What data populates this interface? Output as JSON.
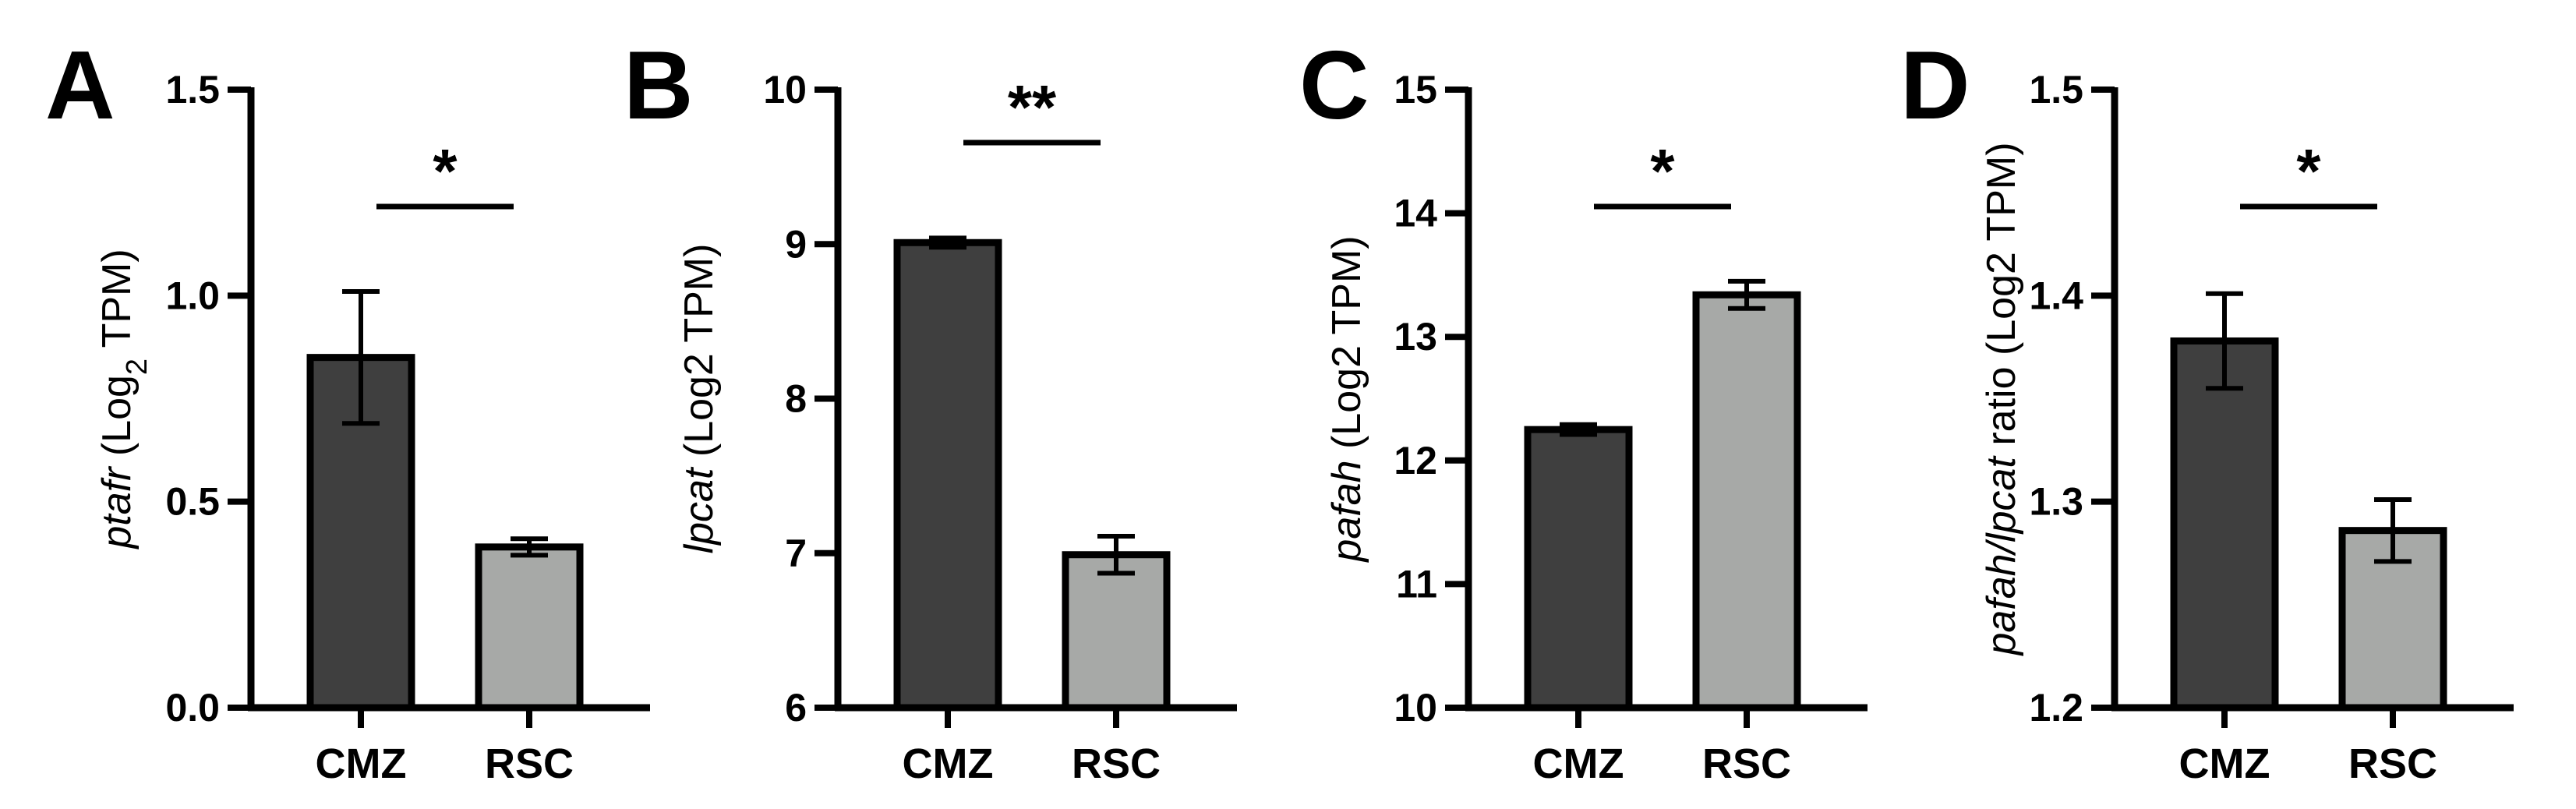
{
  "chart_data": [
    {
      "type": "bar",
      "panel_label": "A",
      "categories": [
        "CMZ",
        "RSC"
      ],
      "values": [
        0.85,
        0.39
      ],
      "errors": [
        0.16,
        0.02
      ],
      "ylabel_parts": [
        {
          "text": "ptafr",
          "italic": true
        },
        {
          "text": " (Log",
          "italic": false
        },
        {
          "text": "2",
          "italic": false,
          "sub": true
        },
        {
          "text": " TPM)",
          "italic": false
        }
      ],
      "ylim": [
        0.0,
        1.5
      ],
      "yticks": [
        "0.0",
        "0.5",
        "1.0",
        "1.5"
      ],
      "significance": "*",
      "colors": [
        "#3f3f3f",
        "#a7a9a7"
      ]
    },
    {
      "type": "bar",
      "panel_label": "B",
      "categories": [
        "CMZ",
        "RSC"
      ],
      "values": [
        9.01,
        6.99
      ],
      "errors": [
        0.03,
        0.12
      ],
      "ylabel_parts": [
        {
          "text": "lpcat",
          "italic": true
        },
        {
          "text": " (Log2 TPM)",
          "italic": false
        }
      ],
      "ylim": [
        6,
        10
      ],
      "yticks": [
        "6",
        "7",
        "8",
        "9",
        "10"
      ],
      "significance": "**",
      "colors": [
        "#3f3f3f",
        "#a7a9a7"
      ]
    },
    {
      "type": "bar",
      "panel_label": "C",
      "categories": [
        "CMZ",
        "RSC"
      ],
      "values": [
        12.25,
        13.34
      ],
      "errors": [
        0.04,
        0.11
      ],
      "ylabel_parts": [
        {
          "text": "pafah",
          "italic": true
        },
        {
          "text": " (Log2 TPM)",
          "italic": false
        }
      ],
      "ylim": [
        10,
        15
      ],
      "yticks": [
        "10",
        "11",
        "12",
        "13",
        "14",
        "15"
      ],
      "significance": "*",
      "colors": [
        "#3f3f3f",
        "#a7a9a7"
      ]
    },
    {
      "type": "bar",
      "panel_label": "D",
      "categories": [
        "CMZ",
        "RSC"
      ],
      "values": [
        1.378,
        1.286
      ],
      "errors": [
        0.023,
        0.015
      ],
      "ylabel_parts": [
        {
          "text": "pafah/lpcat",
          "italic": true
        },
        {
          "text": " ratio (Log2 TPM)",
          "italic": false
        }
      ],
      "ylim": [
        1.2,
        1.5
      ],
      "yticks": [
        "1.2",
        "1.3",
        "1.4",
        "1.5"
      ],
      "significance": "*",
      "colors": [
        "#3f3f3f",
        "#a7a9a7"
      ]
    }
  ]
}
